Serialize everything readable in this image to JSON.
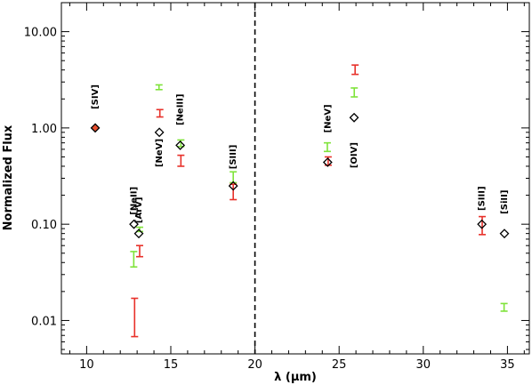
{
  "chart_data": {
    "type": "scatter",
    "title": "",
    "xlabel": "λ (μm)",
    "ylabel": "Normalized Flux",
    "xlim": [
      8.5,
      36.3
    ],
    "ylim": [
      0.0045,
      20
    ],
    "yscale": "log",
    "x_ticks": [
      10,
      15,
      20,
      25,
      30,
      35
    ],
    "x_tick_labels": [
      "10",
      "15",
      "20",
      "25",
      "30",
      "35"
    ],
    "y_ticks": [
      0.01,
      0.1,
      1,
      10
    ],
    "y_tick_labels": [
      "0.01",
      "0.10",
      "1.00",
      "10.00"
    ],
    "grid": false,
    "legend": "none",
    "vline": {
      "x": 20,
      "style": "dashed"
    },
    "colors": {
      "black": "#000000",
      "green": "#7fe33a",
      "red": "#e8312a",
      "fill": "#e8502f"
    },
    "lines": [
      {
        "label": "[SIV]",
        "x": 10.51,
        "label_y": 2.1,
        "black": 1.0,
        "filled": true,
        "green": [],
        "red": []
      },
      {
        "label": "[NeII]",
        "x": 12.81,
        "label_y": 0.175,
        "black": 0.1,
        "green": [
          {
            "x": 12.8,
            "lo": 0.036,
            "hi": 0.052
          }
        ],
        "red": [
          {
            "x": 12.85,
            "lo": 0.0068,
            "hi": 0.017
          }
        ]
      },
      {
        "label": "[ArV]",
        "x": 13.1,
        "label_y": 0.14,
        "black": 0.08,
        "green": [
          {
            "x": 13.15,
            "lo": 0.084,
            "hi": 0.093
          }
        ],
        "red": [
          {
            "x": 13.15,
            "lo": 0.046,
            "hi": 0.06
          }
        ]
      },
      {
        "label": "[NeV]",
        "x": 14.32,
        "label_y": 0.55,
        "black": 0.9,
        "green": [
          {
            "x": 14.3,
            "lo": 2.5,
            "hi": 2.8
          }
        ],
        "red": [
          {
            "x": 14.35,
            "lo": 1.3,
            "hi": 1.55
          }
        ]
      },
      {
        "label": "[NeIII]",
        "x": 15.56,
        "label_y": 1.55,
        "black": 0.66,
        "green": [
          {
            "x": 15.6,
            "lo": 0.64,
            "hi": 0.75
          }
        ],
        "red": [
          {
            "x": 15.6,
            "lo": 0.4,
            "hi": 0.52
          }
        ]
      },
      {
        "label": "[SIII]",
        "x": 18.71,
        "label_y": 0.5,
        "black": 0.25,
        "green": [
          {
            "x": 18.71,
            "lo": 0.27,
            "hi": 0.35
          }
        ],
        "red": [
          {
            "x": 18.71,
            "lo": 0.18,
            "hi": 0.26
          }
        ]
      },
      {
        "label": "[NeV]",
        "x": 24.32,
        "label_y": 1.25,
        "black": 0.44,
        "green": [
          {
            "x": 24.3,
            "lo": 0.57,
            "hi": 0.7
          }
        ],
        "red": [
          {
            "x": 24.35,
            "lo": 0.41,
            "hi": 0.5
          }
        ]
      },
      {
        "label": "[OIV]",
        "x": 25.89,
        "label_y": 0.52,
        "black": 1.28,
        "green": [
          {
            "x": 25.9,
            "lo": 2.1,
            "hi": 2.6
          }
        ],
        "red": [
          {
            "x": 25.95,
            "lo": 3.6,
            "hi": 4.5
          }
        ]
      },
      {
        "label": "[SIII]",
        "x": 33.48,
        "label_y": 0.185,
        "black": 0.1,
        "green": [],
        "red": [
          {
            "x": 33.5,
            "lo": 0.078,
            "hi": 0.12
          }
        ]
      },
      {
        "label": "[SiII]",
        "x": 34.82,
        "label_y": 0.17,
        "black": 0.08,
        "green": [
          {
            "x": 34.8,
            "lo": 0.0125,
            "hi": 0.015
          }
        ],
        "red": []
      }
    ]
  }
}
